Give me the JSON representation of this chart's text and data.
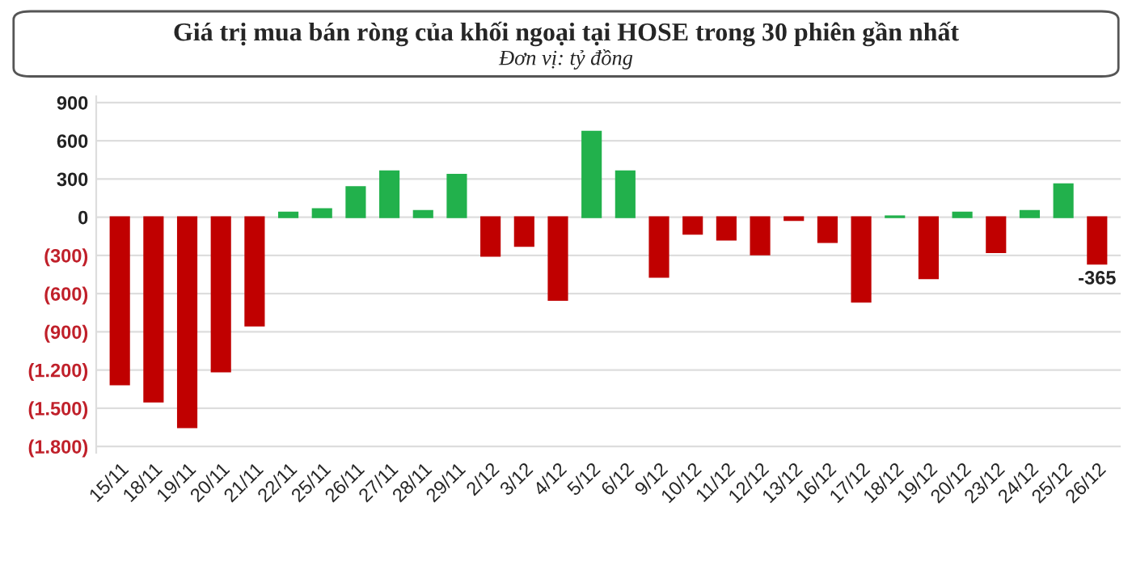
{
  "chart_data": {
    "type": "bar",
    "title": "Giá trị mua bán ròng của khối ngoại tại HOSE trong 30 phiên gần nhất",
    "subtitle": "Đơn vị: tỷ đồng",
    "categories": [
      "15/11",
      "18/11",
      "19/11",
      "20/11",
      "21/11",
      "22/11",
      "25/11",
      "26/11",
      "27/11",
      "28/11",
      "29/11",
      "2/12",
      "3/12",
      "4/12",
      "5/12",
      "6/12",
      "9/12",
      "10/12",
      "11/12",
      "12/12",
      "13/12",
      "16/12",
      "17/12",
      "18/12",
      "19/12",
      "20/12",
      "23/12",
      "24/12",
      "25/12",
      "26/12"
    ],
    "values": [
      -1312,
      -1448,
      -1650,
      -1211,
      -851,
      37,
      64,
      236,
      360,
      49,
      334,
      -304,
      -225,
      -649,
      671,
      360,
      -469,
      -131,
      -176,
      -292,
      -22,
      -195,
      -664,
      7,
      -480,
      37,
      -274,
      49,
      259,
      -365
    ],
    "colors": [
      "#c00000",
      "#c00000",
      "#c00000",
      "#c00000",
      "#c00000",
      "#22b14c",
      "#22b14c",
      "#22b14c",
      "#22b14c",
      "#22b14c",
      "#22b14c",
      "#c00000",
      "#c00000",
      "#c00000",
      "#22b14c",
      "#22b14c",
      "#c00000",
      "#c00000",
      "#c00000",
      "#c00000",
      "#c00000",
      "#c00000",
      "#c00000",
      "#22b14c",
      "#c00000",
      "#22b14c",
      "#c00000",
      "#22b14c",
      "#22b14c",
      "#c00000"
    ],
    "value_labels": [
      null,
      null,
      null,
      null,
      null,
      null,
      null,
      null,
      null,
      null,
      null,
      null,
      null,
      null,
      null,
      null,
      null,
      null,
      null,
      null,
      null,
      null,
      null,
      null,
      null,
      null,
      null,
      null,
      null,
      "-365"
    ],
    "ylim": [
      -1850,
      950
    ],
    "yticks": [
      900,
      600,
      300,
      0,
      {
        "value": -300,
        "label": "(300)"
      },
      {
        "value": -600,
        "label": "(600)"
      },
      {
        "value": -900,
        "label": "(900)"
      },
      {
        "value": -1200,
        "label": "(1.200)"
      },
      {
        "value": -1500,
        "label": "(1.500)"
      },
      {
        "value": -1800,
        "label": "(1.800)"
      }
    ],
    "grid": "y",
    "legend": false
  }
}
